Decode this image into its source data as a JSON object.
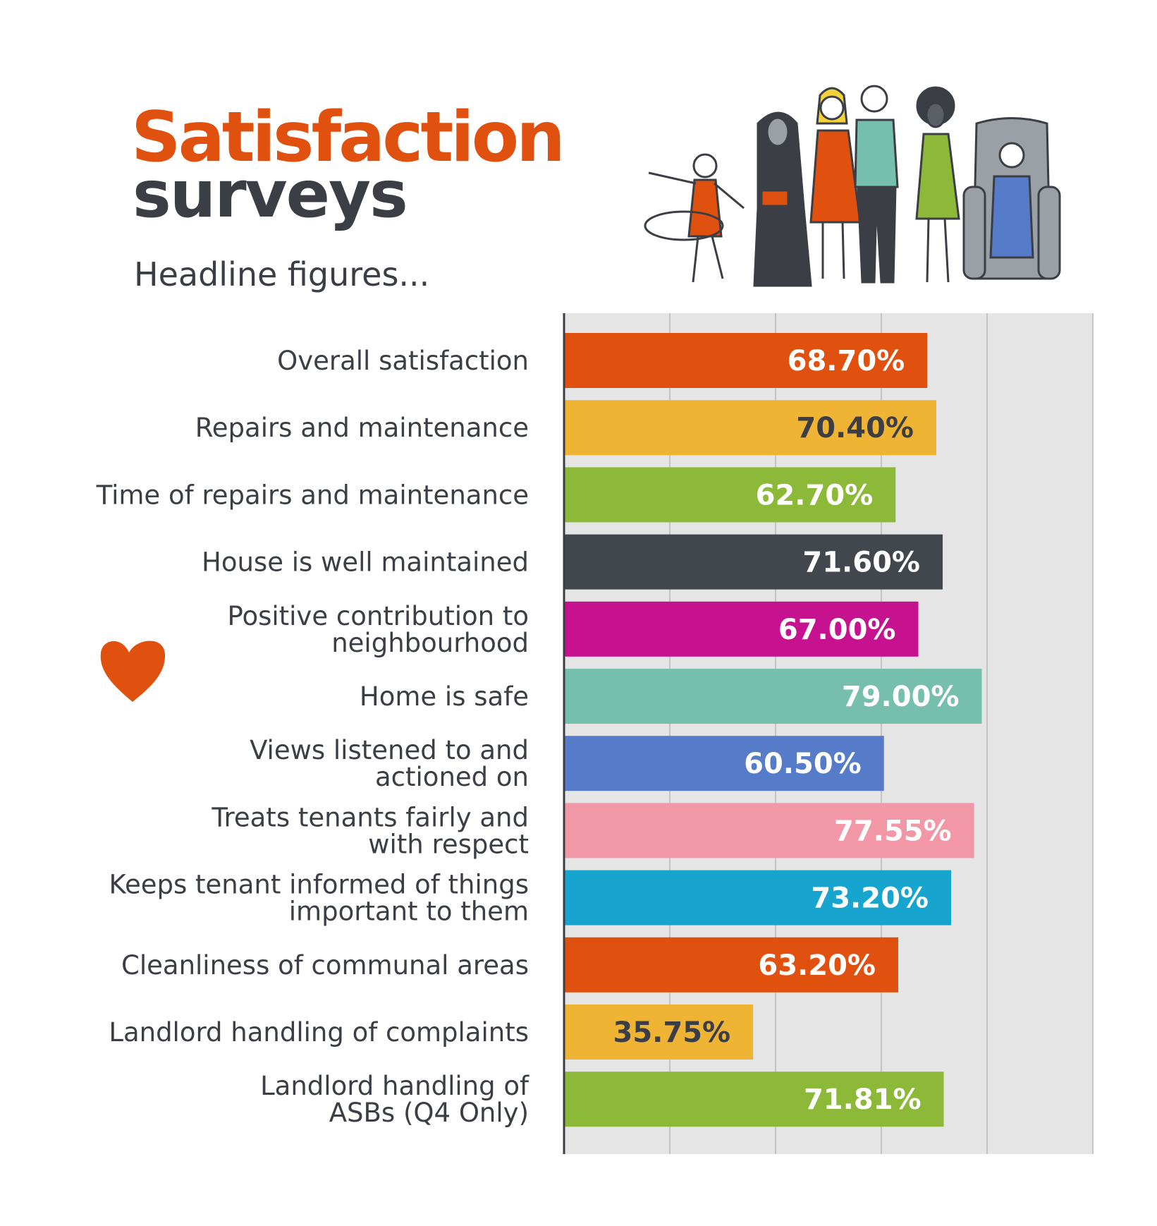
{
  "header": {
    "title_line1": "Satisfaction",
    "title_line2": "surveys",
    "subtitle": "Headline figures..."
  },
  "chart_data": {
    "type": "bar",
    "orientation": "horizontal",
    "xlim": [
      0,
      100
    ],
    "grid": true,
    "categories": [
      [
        "Overall satisfaction"
      ],
      [
        "Repairs and maintenance"
      ],
      [
        "Time of repairs and maintenance"
      ],
      [
        "House is well maintained"
      ],
      [
        "Positive contribution to",
        "neighbourhood"
      ],
      [
        "Home is safe"
      ],
      [
        "Views listened to and",
        "actioned on"
      ],
      [
        "Treats tenants fairly and",
        "with respect"
      ],
      [
        "Keeps tenant informed of things",
        "important to them"
      ],
      [
        "Cleanliness of communal areas"
      ],
      [
        "Landlord handling of complaints"
      ],
      [
        "Landlord handling of",
        "ASBs (Q4 Only)"
      ]
    ],
    "values": [
      68.7,
      70.4,
      62.7,
      71.6,
      67.0,
      79.0,
      60.5,
      77.55,
      73.2,
      63.2,
      35.75,
      71.81
    ],
    "value_labels": [
      "68.70%",
      "70.40%",
      "62.70%",
      "71.60%",
      "67.00%",
      "79.00%",
      "60.50%",
      "77.55%",
      "73.20%",
      "63.20%",
      "35.75%",
      "71.81%"
    ],
    "colors": [
      "#e0500f",
      "#f0b434",
      "#8cba38",
      "#42464d",
      "#c7128f",
      "#76bfad",
      "#567bc8",
      "#f197a6",
      "#17a5cf",
      "#e0500f",
      "#f0b434",
      "#8cba38"
    ],
    "label_colors": [
      "#ffffff",
      "#3b3f45",
      "#ffffff",
      "#ffffff",
      "#ffffff",
      "#ffffff",
      "#ffffff",
      "#ffffff",
      "#ffffff",
      "#ffffff",
      "#3b3f45",
      "#ffffff"
    ]
  },
  "decor": {
    "heart_color": "#e0500f",
    "flower_color": "#e0500f",
    "illustration": "people-group"
  }
}
